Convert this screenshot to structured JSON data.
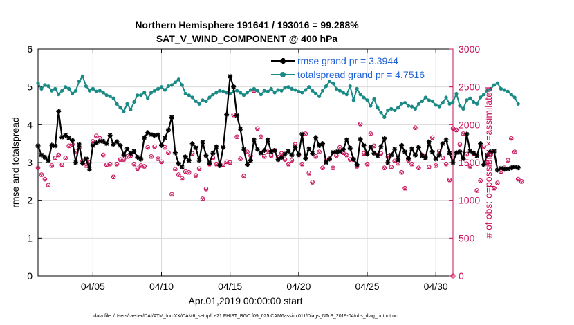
{
  "chart_data": {
    "type": "line",
    "title_line1": "Northern Hemisphere 191641 / 193016 = 99.288%",
    "title_line2": "SAT_V_WIND_COMPONENT @ 400 hPa",
    "xlabel": "Apr.01,2019 00:00:00 start",
    "ylabel_left": "rmse and totalspread",
    "ylabel_right": "# of obs: o=possible; ×=assimilated",
    "footer": "data file: /Users/raeder/DAI/ATM_forcXX/CAM6_setup/f.e21.FHIST_BGC.f09_025.CAM6assim.011/Diags_NTrS_2019-04/obs_diag_output.nc",
    "x_range_days": [
      1,
      31.25
    ],
    "x_ticks": [
      {
        "day": 5,
        "label": "04/05"
      },
      {
        "day": 10,
        "label": "04/10"
      },
      {
        "day": 15,
        "label": "04/15"
      },
      {
        "day": 20,
        "label": "04/20"
      },
      {
        "day": 25,
        "label": "04/25"
      },
      {
        "day": 30,
        "label": "04/30"
      }
    ],
    "ylim_left": [
      0,
      6
    ],
    "yticks_left": [
      "0",
      "1",
      "2",
      "3",
      "4",
      "5",
      "6"
    ],
    "ylim_right": [
      0,
      3000
    ],
    "yticks_right": [
      "0",
      "500",
      "1000",
      "1500",
      "2000",
      "2500",
      "3000"
    ],
    "x_start_day": 1.0,
    "x_step_day": 0.25,
    "legend": [
      {
        "label": "rmse grand pr = 3.3944",
        "color": "#000000"
      },
      {
        "label": "totalspread grand pr = 4.7516",
        "color": "#1a8a86"
      }
    ],
    "colors": {
      "rmse": "#000000",
      "spread": "#1a8a86",
      "obs": "#c8105a",
      "axis_right": "#c8105a",
      "grid": "#d9d9d9"
    },
    "series": [
      {
        "name": "rmse",
        "values": [
          3.44,
          3.2,
          3.14,
          3.05,
          3.46,
          3.44,
          4.35,
          3.67,
          3.72,
          3.65,
          3.58,
          3.0,
          3.47,
          2.98,
          3.1,
          2.82,
          3.45,
          3.52,
          3.56,
          3.56,
          3.5,
          3.72,
          3.48,
          3.55,
          3.45,
          3.2,
          3.36,
          3.24,
          3.3,
          3.14,
          3.09,
          3.66,
          3.79,
          3.74,
          3.72,
          3.73,
          3.45,
          3.65,
          3.86,
          4.2,
          3.26,
          2.97,
          2.88,
          3.15,
          3.05,
          3.5,
          3.39,
          3.06,
          3.54,
          3.19,
          2.98,
          3.25,
          3.42,
          2.92,
          3.4,
          4.27,
          5.28,
          5.0,
          4.24,
          3.88,
          3.35,
          2.95,
          3.05,
          3.6,
          3.35,
          3.25,
          3.32,
          3.6,
          3.28,
          3.32,
          3.08,
          3.13,
          3.22,
          3.3,
          3.2,
          3.4,
          3.21,
          3.75,
          3.1,
          3.36,
          3.24,
          3.66,
          3.45,
          3.5,
          3.0,
          3.09,
          3.27,
          3.28,
          3.29,
          3.34,
          3.6,
          3.38,
          3.09,
          2.95,
          3.62,
          3.45,
          3.22,
          3.41,
          3.25,
          3.18,
          3.42,
          3.63,
          3.0,
          3.2,
          3.35,
          3.07,
          3.45,
          3.28,
          3.1,
          3.36,
          3.2,
          3.4,
          3.18,
          3.12,
          3.55,
          3.28,
          3.09,
          3.2,
          3.5,
          3.6,
          3.25,
          3.0,
          3.26,
          3.28,
          3.1,
          3.75,
          3.3,
          3.25,
          3.18,
          3.5,
          2.95,
          3.2,
          3.28,
          3.3,
          2.8,
          2.85,
          2.82,
          2.83,
          2.86,
          2.88,
          2.86
        ]
      },
      {
        "name": "totalspread",
        "values": [
          5.1,
          4.95,
          5.05,
          5.02,
          4.9,
          4.95,
          4.8,
          4.9,
          5.0,
          4.95,
          4.82,
          4.9,
          5.15,
          5.28,
          5.02,
          4.9,
          4.95,
          4.88,
          4.9,
          4.85,
          4.78,
          4.75,
          4.7,
          4.55,
          4.45,
          4.35,
          4.55,
          4.4,
          4.6,
          4.78,
          4.78,
          4.85,
          4.7,
          4.85,
          4.9,
          4.95,
          5.0,
          4.92,
          5.02,
          5.05,
          5.12,
          5.2,
          5.05,
          4.82,
          4.78,
          4.72,
          4.62,
          4.55,
          4.65,
          4.62,
          4.72,
          4.8,
          4.85,
          4.9,
          4.88,
          4.85,
          4.82,
          4.88,
          4.9,
          4.85,
          4.78,
          4.85,
          4.92,
          4.95,
          4.9,
          4.8,
          4.9,
          4.88,
          4.95,
          4.85,
          4.92,
          4.9,
          4.98,
          5.0,
          4.95,
          4.92,
          4.88,
          4.85,
          4.92,
          5.0,
          4.9,
          4.82,
          4.75,
          4.9,
          5.02,
          5.15,
          5.1,
          4.95,
          4.9,
          4.85,
          4.8,
          5.02,
          4.65,
          4.95,
          4.8,
          4.72,
          4.65,
          4.5,
          4.68,
          4.45,
          4.32,
          4.2,
          4.38,
          4.42,
          4.38,
          4.45,
          4.55,
          4.58,
          4.5,
          4.48,
          4.42,
          4.55,
          4.62,
          4.72,
          4.65,
          4.62,
          4.52,
          4.48,
          4.58,
          4.72,
          4.55,
          4.6,
          4.82,
          4.5,
          4.42,
          4.65,
          4.7,
          4.6,
          4.55,
          4.72,
          4.8,
          4.9,
          4.95,
          5.05,
          5.1,
          4.95,
          4.92,
          4.88,
          4.8,
          4.72,
          4.55
        ]
      },
      {
        "name": "obs_possible",
        "values": [
          1430,
          1340,
          1280,
          1200,
          1460,
          1560,
          1600,
          1470,
          1560,
          1720,
          1740,
          1650,
          1700,
          1520,
          1460,
          1500,
          1780,
          1850,
          1820,
          1600,
          1470,
          1480,
          1310,
          1480,
          1540,
          1540,
          1580,
          1590,
          1480,
          1420,
          1460,
          1450,
          1700,
          1580,
          1710,
          1550,
          1510,
          1700,
          1630,
          1080,
          1410,
          1340,
          1290,
          1380,
          1370,
          1620,
          1330,
          1420,
          1020,
          1150,
          1480,
          1560,
          1480,
          1470,
          1470,
          1510,
          1500,
          2130,
          1840,
          1550,
          1320,
          1640,
          1590,
          2450,
          1950,
          1840,
          1580,
          1640,
          1590,
          1660,
          1570,
          1620,
          1540,
          1480,
          1530,
          1740,
          1600,
          1480,
          1880,
          1360,
          1240,
          1580,
          1640,
          1430,
          1520,
          1550,
          1430,
          1590,
          1700,
          1630,
          1600,
          1540,
          1540,
          1450,
          2010,
          1620,
          1480,
          1880,
          1720,
          1600,
          1620,
          1430,
          1580,
          1440,
          1520,
          1490,
          1370,
          1160,
          1530,
          1480,
          1960,
          1430,
          1600,
          1580,
          1440,
          1830,
          1460,
          1650,
          1560,
          1480,
          1270,
          1950,
          1930,
          1740,
          1880,
          1610,
          1450,
          1620,
          1130,
          1260,
          1710,
          1500,
          1600,
          1160,
          1230,
          1380,
          1430,
          1530,
          1820,
          1640,
          1280,
          1250
        ]
      },
      {
        "name": "obs_assimilated",
        "values": [
          1420,
          1330,
          1270,
          1190,
          1450,
          1550,
          1590,
          1460,
          1550,
          1710,
          1730,
          1640,
          1690,
          1510,
          1450,
          1490,
          1770,
          1840,
          1810,
          1590,
          1460,
          1470,
          1300,
          1470,
          1530,
          1530,
          1570,
          1580,
          1470,
          1410,
          1450,
          1440,
          1690,
          1570,
          1700,
          1540,
          1500,
          1690,
          1620,
          1070,
          1400,
          1330,
          1280,
          1370,
          1360,
          1610,
          1320,
          1410,
          1010,
          1140,
          1470,
          1550,
          1470,
          1460,
          1460,
          1500,
          1490,
          2120,
          1830,
          1540,
          1310,
          1630,
          1580,
          2440,
          1940,
          1830,
          1570,
          1630,
          1580,
          1650,
          1560,
          1610,
          1530,
          1470,
          1520,
          1730,
          1590,
          1470,
          1870,
          1350,
          1230,
          1570,
          1630,
          1420,
          1510,
          1540,
          1420,
          1580,
          1690,
          1620,
          1590,
          1530,
          1530,
          1440,
          2000,
          1610,
          1470,
          1870,
          1710,
          1590,
          1610,
          1420,
          1570,
          1430,
          1510,
          1480,
          1360,
          1150,
          1520,
          1470,
          1950,
          1420,
          1590,
          1570,
          1430,
          1820,
          1450,
          1640,
          1550,
          1470,
          1260,
          1940,
          1920,
          1730,
          1870,
          1600,
          1440,
          1610,
          1120,
          1250,
          1700,
          1490,
          1590,
          1150,
          1220,
          1370,
          1420,
          1520,
          1810,
          1630,
          1270,
          1240
        ]
      }
    ],
    "last_obs_marker_value": 0
  }
}
